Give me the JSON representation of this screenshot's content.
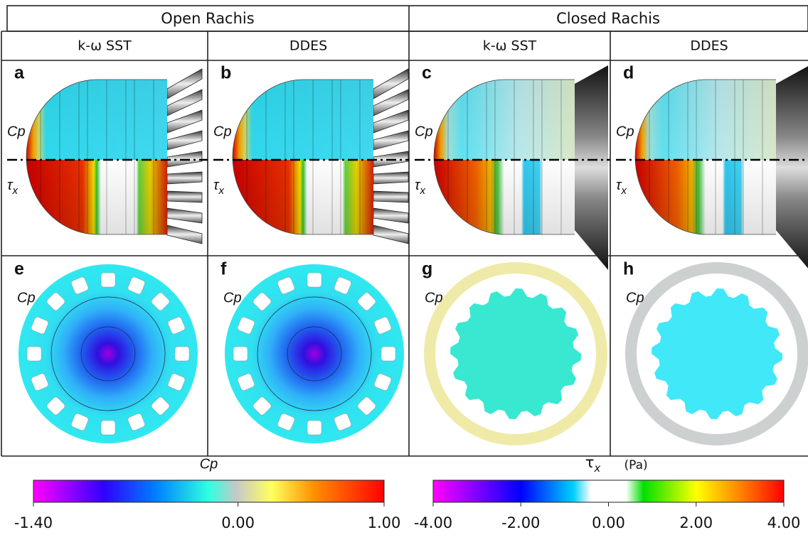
{
  "header": {
    "groups": [
      "Open Rachis",
      "Closed Rachis"
    ],
    "methods": [
      "k-ω SST",
      "DDES",
      "k-ω SST",
      "DDES"
    ]
  },
  "panels": [
    {
      "letter": "a",
      "top_label": "Cp",
      "bottom_label": {
        "symbol": "τ",
        "subscript": "x"
      }
    },
    {
      "letter": "b",
      "top_label": "Cp",
      "bottom_label": {
        "symbol": "τ",
        "subscript": "x"
      }
    },
    {
      "letter": "c",
      "top_label": "Cp",
      "bottom_label": {
        "symbol": "τ",
        "subscript": "x"
      }
    },
    {
      "letter": "d",
      "top_label": "Cp",
      "bottom_label": {
        "symbol": "τ",
        "subscript": "x"
      }
    },
    {
      "letter": "e",
      "top_label": "Cp"
    },
    {
      "letter": "f",
      "top_label": "Cp"
    },
    {
      "letter": "g",
      "top_label": "Cp"
    },
    {
      "letter": "h",
      "top_label": "Cp"
    }
  ],
  "colorbars": [
    {
      "title": "Cp",
      "range": [
        -1.4,
        1.0
      ],
      "ticks": [
        {
          "value": -1.4,
          "label": "-1.40"
        },
        {
          "value": 0,
          "label": "0.00"
        },
        {
          "value": 1.0,
          "label": "1.00"
        }
      ]
    },
    {
      "title": {
        "symbol": "τ",
        "subscript": "x"
      },
      "unit": "(Pa)",
      "range": [
        -4,
        4
      ],
      "ticks": [
        {
          "value": -4,
          "label": "-4.00"
        },
        {
          "value": -2,
          "label": "-2.00"
        },
        {
          "value": 0,
          "label": "0.00"
        },
        {
          "value": 2,
          "label": "2.00"
        },
        {
          "value": 4,
          "label": "4.00"
        }
      ]
    }
  ]
}
